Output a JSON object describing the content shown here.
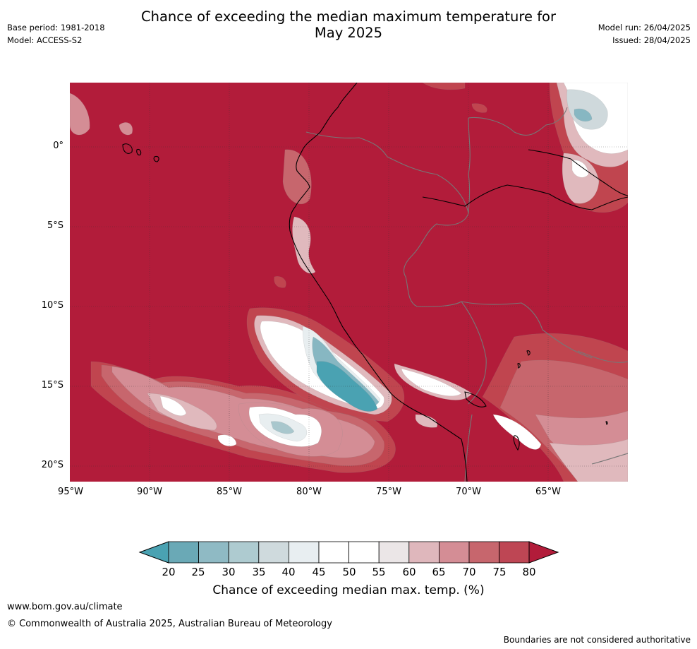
{
  "title": {
    "line1": "Chance of exceeding the median maximum temperature for",
    "line2": "May 2025"
  },
  "meta_left": {
    "base_period": "Base period: 1981-2018",
    "model": "Model: ACCESS-S2"
  },
  "meta_right": {
    "model_run": "Model run: 26/04/2025",
    "issued": "Issued: 28/04/2025"
  },
  "map": {
    "lat_labels": [
      "0°",
      "5°S",
      "10°S",
      "15°S",
      "20°S"
    ],
    "lon_labels": [
      "95°W",
      "90°W",
      "85°W",
      "80°W",
      "75°W",
      "70°W",
      "65°W"
    ],
    "dominant_category": "80+",
    "colors": {
      "c80": "#b21c3a",
      "c75": "#c0454f",
      "c70": "#c7666d",
      "c65": "#d48d95",
      "c60": "#e0b9bd",
      "c55": "#ebe5e7",
      "c50": "#ffffff",
      "c40": "#e8eef0",
      "c35": "#cfd9dc",
      "c30": "#a9c7cd",
      "c25": "#87b7c2",
      "c20": "#4aa2b2",
      "coast": "#000000",
      "border": "#777777",
      "grid": "#333333"
    }
  },
  "colorbar": {
    "ticks": [
      "20",
      "25",
      "30",
      "35",
      "40",
      "45",
      "50",
      "55",
      "60",
      "65",
      "70",
      "75",
      "80"
    ],
    "colors": [
      "#6aa9b6",
      "#8fbac4",
      "#aecbd0",
      "#cfdadd",
      "#e8eef1",
      "#ffffff",
      "#ffffff",
      "#ebe6e7",
      "#dfb7bc",
      "#d48d95",
      "#c7666d",
      "#be4654"
    ],
    "under_color": "#4aa2b2",
    "over_color": "#b21c3a",
    "label": "Chance of exceeding median max. temp. (%)"
  },
  "footer": {
    "url": "www.bom.gov.au/climate",
    "copyright": "© Commonwealth of Australia 2025, Australian Bureau of Meteorology",
    "disclaimer": "Boundaries are not considered authoritative"
  }
}
